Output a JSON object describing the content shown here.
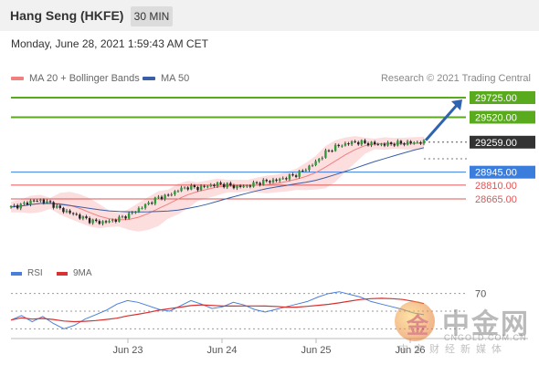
{
  "header": {
    "title": "Hang Seng (HKFE)",
    "interval": "30 MIN"
  },
  "datetime": "Monday, June 28, 2021 1:59:43 AM CET",
  "legend": {
    "ma20_label": "MA 20 + Bollinger Bands",
    "ma50_label": "MA 50",
    "credit": "Research © 2021 Trading Central"
  },
  "colors": {
    "resistance": "#5aaa1e",
    "current": "#333333",
    "support_blue": "#3b7ddd",
    "support_red": "#e05555",
    "ma20": "#f08080",
    "bollinger_fill": "#fbd6d6",
    "ma50": "#3a5ea8",
    "rsi": "#4a7fd8",
    "rsi_ma": "#d93030",
    "arrow": "#2f63b0"
  },
  "chart_data": {
    "type": "candlestick",
    "x_labels": [
      "Jun 23",
      "Jun 24",
      "Jun 25",
      "Jun 26"
    ],
    "levels": [
      {
        "label": "29725.00",
        "value": 29725,
        "kind": "resistance"
      },
      {
        "label": "29520.00",
        "value": 29520,
        "kind": "resistance"
      },
      {
        "label": "29259.00",
        "value": 29259,
        "kind": "current"
      },
      {
        "label": "28945.00",
        "value": 28945,
        "kind": "support_blue"
      },
      {
        "label": "28810.00",
        "value": 28810,
        "kind": "support_red"
      },
      {
        "label": "28665.00",
        "value": 28665,
        "kind": "support_red"
      }
    ],
    "price_path": [
      28580,
      28600,
      28640,
      28650,
      28620,
      28560,
      28520,
      28480,
      28440,
      28420,
      28430,
      28460,
      28500,
      28560,
      28620,
      28680,
      28700,
      28760,
      28790,
      28780,
      28800,
      28820,
      28810,
      28790,
      28800,
      28830,
      28850,
      28860,
      28890,
      28920,
      28980,
      29050,
      29150,
      29210,
      29240,
      29260,
      29250,
      29240,
      29235,
      29245,
      29250,
      29255,
      29259
    ],
    "rsi": {
      "label": "RSI",
      "ma_label": "9MA",
      "level_label": "70",
      "values": [
        40,
        45,
        38,
        44,
        36,
        30,
        34,
        41,
        46,
        51,
        58,
        62,
        60,
        56,
        52,
        50,
        56,
        62,
        58,
        53,
        55,
        60,
        57,
        52,
        49,
        52,
        55,
        58,
        61,
        66,
        70,
        72,
        69,
        66,
        61,
        58,
        55,
        52,
        48,
        46
      ]
    }
  },
  "watermark": {
    "logo_glyph": "金",
    "name": "中金网",
    "url": "CNGOLD.COM.CN",
    "tagline": "中文财经新媒体"
  }
}
